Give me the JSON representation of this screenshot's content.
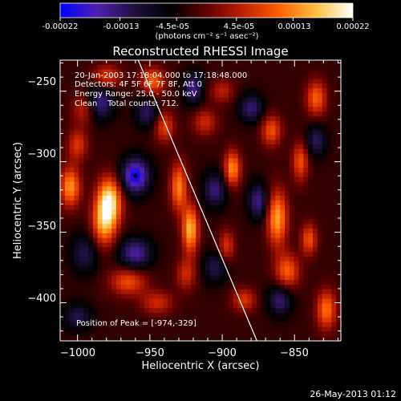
{
  "colorbar": {
    "tick_labels": [
      "-0.00022",
      "-0.00013",
      "-4.5e-05",
      "4.5e-05",
      "0.00013",
      "0.00022"
    ],
    "tick_values": [
      -0.00022,
      -0.00013,
      -4.5e-05,
      4.5e-05,
      0.00013,
      0.00022
    ],
    "range": [
      -0.00022,
      0.00022
    ],
    "units_label": "(photons cm⁻² s⁻¹ asec⁻²)",
    "colormap": [
      "#0000ff",
      "#5020b0",
      "#201040",
      "#000000",
      "#600000",
      "#c02000",
      "#ff6000",
      "#ffc040",
      "#ffffff"
    ]
  },
  "chart_data": {
    "type": "heatmap",
    "title": "Reconstructed RHESSI Image",
    "xlabel": "Heliocentric X (arcsec)",
    "ylabel": "Heliocentric Y (arcsec)",
    "xlim": [
      -1012,
      -818
    ],
    "ylim": [
      -427,
      -228
    ],
    "xticks": [
      -1000,
      -950,
      -900,
      -850
    ],
    "yticks": [
      -250,
      -300,
      -350,
      -400
    ],
    "xtick_labels": [
      "−1000",
      "−950",
      "−900",
      "−850"
    ],
    "ytick_labels": [
      "−250",
      "−300",
      "−350",
      "−400"
    ],
    "annotations": {
      "time": "20-Jan-2003 17:18:04.000 to 17:18:48.000",
      "detectors": "Detectors: 4F 5F 6F 7F 8F, Att 0",
      "energy": "Energy Range: 25.0 - 50.0 keV",
      "clean": "Clean    Total counts: 712.",
      "peak": "Position of Peak = [-974,-329]"
    },
    "peak": [
      -974,
      -329
    ],
    "limb_line": [
      [
        -958,
        -228
      ],
      [
        -876,
        -427
      ]
    ],
    "components": [
      {
        "x": -978,
        "y": -328,
        "amp": 1.0,
        "sx": 6,
        "sy": 12
      },
      {
        "x": -982,
        "y": -345,
        "amp": 0.65,
        "sx": 6,
        "sy": 12
      },
      {
        "x": -965,
        "y": -385,
        "amp": 0.55,
        "sx": 9,
        "sy": 7
      },
      {
        "x": -945,
        "y": -400,
        "amp": 0.4,
        "sx": 8,
        "sy": 6
      },
      {
        "x": -1005,
        "y": -318,
        "amp": 0.75,
        "sx": 5,
        "sy": 10
      },
      {
        "x": -1000,
        "y": -288,
        "amp": 0.45,
        "sx": 5,
        "sy": 8
      },
      {
        "x": -995,
        "y": -262,
        "amp": 0.45,
        "sx": 6,
        "sy": 8
      },
      {
        "x": -980,
        "y": -240,
        "amp": 0.5,
        "sx": 7,
        "sy": 6
      },
      {
        "x": -948,
        "y": -243,
        "amp": 0.6,
        "sx": 6,
        "sy": 7
      },
      {
        "x": -940,
        "y": -275,
        "amp": 0.5,
        "sx": 5,
        "sy": 8
      },
      {
        "x": -930,
        "y": -318,
        "amp": 0.7,
        "sx": 4,
        "sy": 12
      },
      {
        "x": -922,
        "y": -348,
        "amp": 0.85,
        "sx": 4,
        "sy": 12
      },
      {
        "x": -925,
        "y": -380,
        "amp": 0.4,
        "sx": 5,
        "sy": 8
      },
      {
        "x": -912,
        "y": -272,
        "amp": 0.4,
        "sx": 6,
        "sy": 7
      },
      {
        "x": -900,
        "y": -250,
        "amp": 0.35,
        "sx": 6,
        "sy": 6
      },
      {
        "x": -893,
        "y": -305,
        "amp": 0.75,
        "sx": 4,
        "sy": 9
      },
      {
        "x": -897,
        "y": -360,
        "amp": 0.45,
        "sx": 4,
        "sy": 8
      },
      {
        "x": -885,
        "y": -398,
        "amp": 0.45,
        "sx": 6,
        "sy": 6
      },
      {
        "x": -866,
        "y": -278,
        "amp": 0.55,
        "sx": 5,
        "sy": 8
      },
      {
        "x": -862,
        "y": -340,
        "amp": 0.8,
        "sx": 5,
        "sy": 14
      },
      {
        "x": -855,
        "y": -378,
        "amp": 0.6,
        "sx": 6,
        "sy": 9
      },
      {
        "x": -846,
        "y": -300,
        "amp": 0.55,
        "sx": 4,
        "sy": 10
      },
      {
        "x": -840,
        "y": -355,
        "amp": 0.55,
        "sx": 4,
        "sy": 8
      },
      {
        "x": -835,
        "y": -255,
        "amp": 0.6,
        "sx": 5,
        "sy": 9
      },
      {
        "x": -828,
        "y": -405,
        "amp": 0.65,
        "sx": 5,
        "sy": 10
      },
      {
        "x": -960,
        "y": -310,
        "amp": -0.85,
        "sx": 7,
        "sy": 9
      },
      {
        "x": -985,
        "y": -258,
        "amp": -0.6,
        "sx": 7,
        "sy": 9
      },
      {
        "x": -952,
        "y": -265,
        "amp": -0.45,
        "sx": 6,
        "sy": 8
      },
      {
        "x": -920,
        "y": -248,
        "amp": -0.55,
        "sx": 5,
        "sy": 8
      },
      {
        "x": -905,
        "y": -320,
        "amp": -0.5,
        "sx": 6,
        "sy": 9
      },
      {
        "x": -880,
        "y": -262,
        "amp": -0.5,
        "sx": 6,
        "sy": 7
      },
      {
        "x": -875,
        "y": -328,
        "amp": -0.55,
        "sx": 5,
        "sy": 9
      },
      {
        "x": -860,
        "y": -398,
        "amp": -0.5,
        "sx": 6,
        "sy": 8
      },
      {
        "x": -960,
        "y": -365,
        "amp": -0.6,
        "sx": 8,
        "sy": 8
      },
      {
        "x": -995,
        "y": -365,
        "amp": -0.4,
        "sx": 7,
        "sy": 10
      },
      {
        "x": -1000,
        "y": -410,
        "amp": -0.4,
        "sx": 7,
        "sy": 7
      },
      {
        "x": -835,
        "y": -285,
        "amp": -0.45,
        "sx": 5,
        "sy": 8
      },
      {
        "x": -905,
        "y": -375,
        "amp": -0.4,
        "sx": 6,
        "sy": 8
      }
    ]
  },
  "footer": {
    "date": "26-May-2013 01:12"
  }
}
